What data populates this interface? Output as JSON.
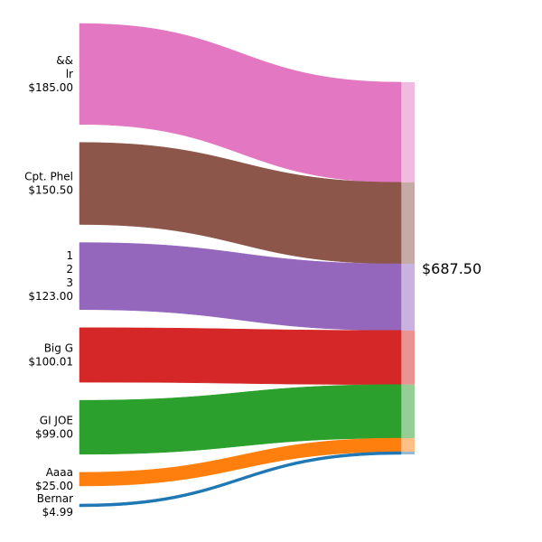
{
  "chart_data": {
    "type": "sankey",
    "title": "",
    "sources": [
      {
        "label": [
          "&&",
          "lr",
          "$185.00"
        ],
        "value": 185.0,
        "color": "#e377c2"
      },
      {
        "label": [
          "Cpt. Phel",
          "$150.50"
        ],
        "value": 150.5,
        "color": "#8c564b"
      },
      {
        "label": [
          "1",
          "2",
          "3",
          "$123.00"
        ],
        "value": 123.0,
        "color": "#9467bd"
      },
      {
        "label": [
          "Big G",
          "$100.01"
        ],
        "value": 100.01,
        "color": "#d62728"
      },
      {
        "label": [
          "GI JOE",
          "$99.00"
        ],
        "value": 99.0,
        "color": "#2ca02c"
      },
      {
        "label": [
          "Aaaa",
          "$25.00"
        ],
        "value": 25.0,
        "color": "#ff7f0e"
      },
      {
        "label": [
          "Bernar",
          "$4.99"
        ],
        "value": 4.99,
        "color": "#1f77b4"
      }
    ],
    "target": {
      "label": "$687.50",
      "value": 687.5
    }
  }
}
